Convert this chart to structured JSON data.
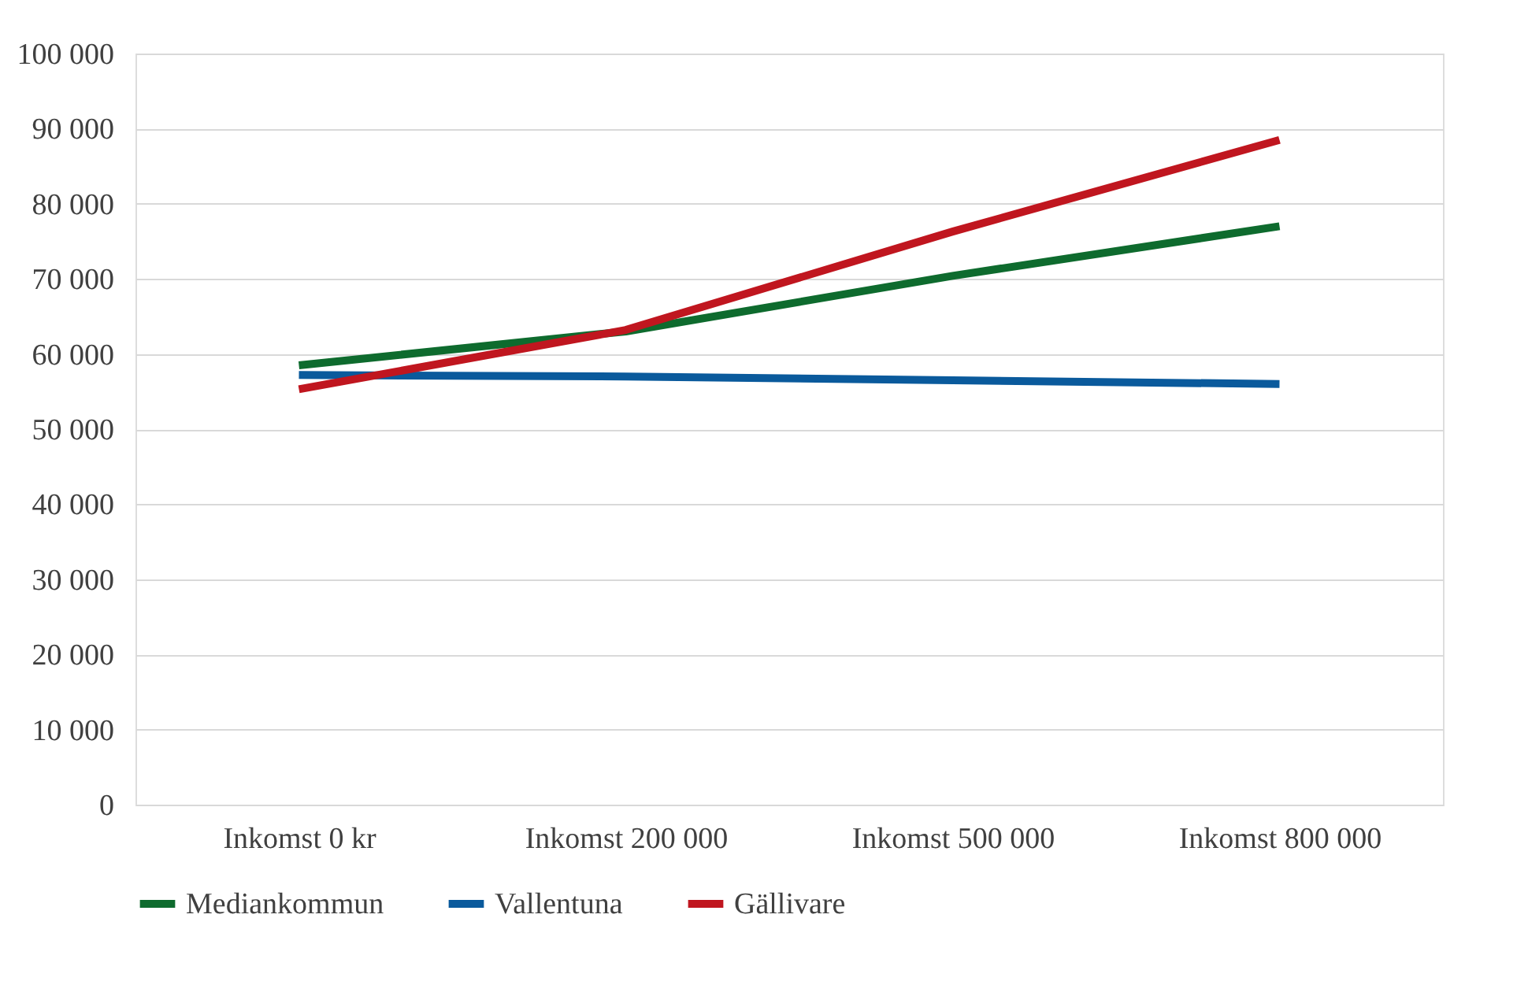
{
  "chart_data": {
    "type": "line",
    "categories": [
      "Inkomst 0 kr",
      "Inkomst 200 000",
      "Inkomst 500 000",
      "Inkomst 800 000"
    ],
    "series": [
      {
        "name": "Mediankommun",
        "color": "#0e6b2e",
        "values": [
          58500,
          63000,
          70400,
          77000
        ]
      },
      {
        "name": "Vallentuna",
        "color": "#0a5a9c",
        "values": [
          57200,
          57000,
          56500,
          56000
        ]
      },
      {
        "name": "Gällivare",
        "color": "#c0161f",
        "values": [
          55300,
          63200,
          76300,
          88500
        ]
      }
    ],
    "ylim": [
      0,
      100000
    ],
    "yticks": [
      {
        "value": 0,
        "label": "0"
      },
      {
        "value": 10000,
        "label": "10 000"
      },
      {
        "value": 20000,
        "label": "20 000"
      },
      {
        "value": 30000,
        "label": "30 000"
      },
      {
        "value": 40000,
        "label": "40 000"
      },
      {
        "value": 50000,
        "label": "50 000"
      },
      {
        "value": 60000,
        "label": "60 000"
      },
      {
        "value": 70000,
        "label": "70 000"
      },
      {
        "value": 80000,
        "label": "80 000"
      },
      {
        "value": 90000,
        "label": "90 000"
      },
      {
        "value": 100000,
        "label": "100 000"
      }
    ],
    "grid": "y",
    "legend": "bottom",
    "marker": "none",
    "line_style": "solid"
  }
}
